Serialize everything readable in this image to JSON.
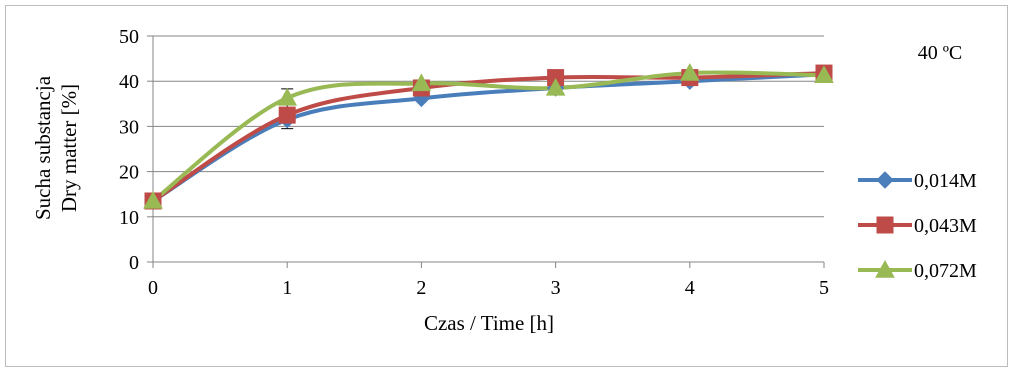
{
  "chart_data": {
    "type": "line",
    "annotation": "40 ºC",
    "xlabel": "Czas / Time [h]",
    "ylabel_line1": "Sucha substancja",
    "ylabel_line2": "Dry matter  [%]",
    "x": [
      0,
      1,
      2,
      3,
      4,
      5
    ],
    "xlim": [
      0,
      5
    ],
    "ylim": [
      0,
      50
    ],
    "y_ticks": [
      0,
      10,
      20,
      30,
      40,
      50
    ],
    "x_ticks": [
      0,
      1,
      2,
      3,
      4,
      5
    ],
    "grid": "horizontal",
    "legend_position": "right",
    "series": [
      {
        "name": "0,014M",
        "color": "#4a7ebb",
        "marker": "diamond",
        "values": [
          13.5,
          31.5,
          36.2,
          38.5,
          40.0,
          41.5
        ]
      },
      {
        "name": "0,043M",
        "color": "#be4b48",
        "marker": "square",
        "values": [
          13.5,
          32.5,
          38.5,
          40.8,
          40.8,
          41.8
        ]
      },
      {
        "name": "0,072M",
        "color": "#98b954",
        "marker": "triangle",
        "values": [
          13.5,
          36.3,
          39.5,
          38.5,
          41.8,
          41.3
        ]
      }
    ],
    "error_bars": [
      {
        "x": 1,
        "low": 29.5,
        "high": 38.3
      }
    ]
  }
}
